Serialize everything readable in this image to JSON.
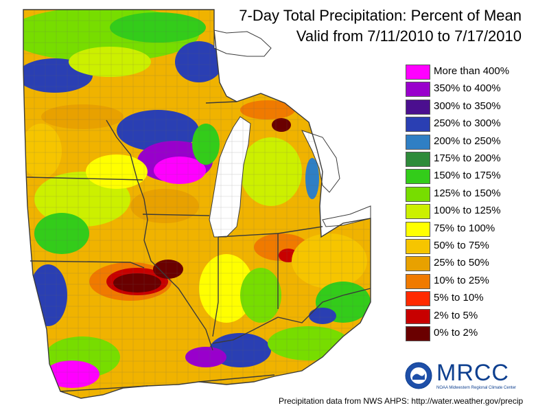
{
  "title": {
    "line1": "7-Day Total Precipitation: Percent of Mean",
    "line2": "Valid from 7/11/2010 to 7/17/2010"
  },
  "legend": [
    {
      "label": "More than 400%",
      "color": "#ff00ff"
    },
    {
      "label": "350% to 400%",
      "color": "#9900cc"
    },
    {
      "label": "300% to 350%",
      "color": "#4b0f8f"
    },
    {
      "label": "250% to 300%",
      "color": "#2a3fb3"
    },
    {
      "label": "200% to 250%",
      "color": "#2f7fc4"
    },
    {
      "label": "175% to 200%",
      "color": "#2e8b3a"
    },
    {
      "label": "150% to 175%",
      "color": "#33cc1a"
    },
    {
      "label": "125% to 150%",
      "color": "#77dd00"
    },
    {
      "label": "100% to 125%",
      "color": "#ccf000"
    },
    {
      "label": "75% to 100%",
      "color": "#ffff00"
    },
    {
      "label": "50% to 75%",
      "color": "#f6c500"
    },
    {
      "label": "25% to 50%",
      "color": "#e8a100"
    },
    {
      "label": "10% to 25%",
      "color": "#f07a00"
    },
    {
      "label": "5% to 10%",
      "color": "#ff2a00"
    },
    {
      "label": "2% to 5%",
      "color": "#c80000"
    },
    {
      "label": "0% to 2%",
      "color": "#6a0000"
    }
  ],
  "logo": {
    "text": "MRCC",
    "subtitle": "NOAA Midwestern Regional Climate Center"
  },
  "credit": "Precipitation data from NWS AHPS:  http://water.weather.gov/precip",
  "colors": {
    "lake": "#ffffff",
    "border": "#3a3a3a",
    "county": "#666666"
  }
}
